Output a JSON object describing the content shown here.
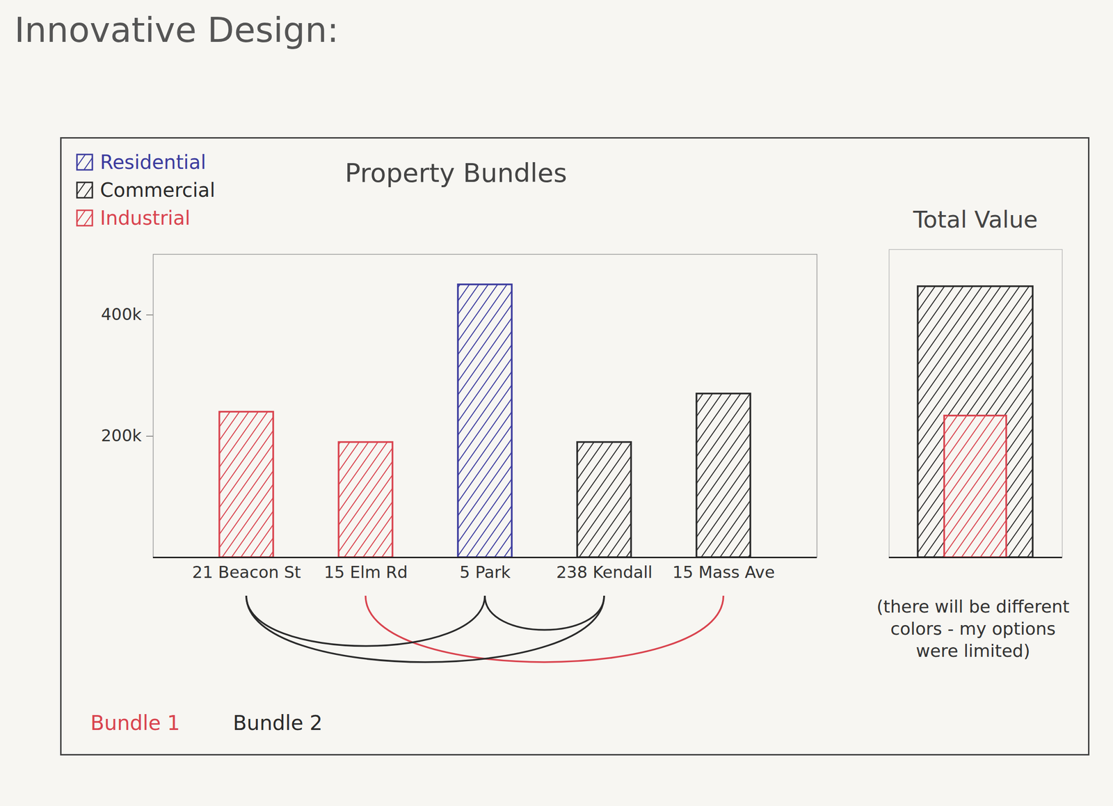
{
  "title": "Innovative Design:",
  "annotation": "(there will be different colors - my options were limited)",
  "bundles": [
    {
      "name": "Bundle 1",
      "color": "#d9434e",
      "members": [
        "15 Elm Rd",
        "15 Mass Ave"
      ]
    },
    {
      "name": "Bundle 2",
      "color": "#2a2a2a",
      "members": [
        "21 Beacon St",
        "5 Park",
        "238 Kendall"
      ]
    }
  ],
  "chart_data": [
    {
      "type": "bar",
      "title": "Property Bundles",
      "categories": [
        "21 Beacon St",
        "15 Elm Rd",
        "5 Park",
        "238 Kendall",
        "15 Mass Ave"
      ],
      "series": [
        {
          "name": "Residential",
          "color": "#3b3b9e",
          "values": [
            null,
            null,
            450000,
            null,
            null
          ]
        },
        {
          "name": "Commercial",
          "color": "#2a2a2a",
          "values": [
            null,
            null,
            null,
            190000,
            270000
          ]
        },
        {
          "name": "Industrial",
          "color": "#d9434e",
          "values": [
            240000,
            190000,
            null,
            null,
            null
          ]
        }
      ],
      "ylim": [
        0,
        500000
      ],
      "yticks": [
        {
          "value": 200000,
          "label": "200k"
        },
        {
          "value": 400000,
          "label": "400k"
        }
      ],
      "legend": "top-left"
    },
    {
      "type": "bar",
      "title": "Total Value",
      "values": [
        880000,
        460000
      ],
      "colors": [
        "#2a2a2a",
        "#d9434e"
      ],
      "ylim": [
        0,
        1000000
      ],
      "tick_labels": false
    }
  ]
}
